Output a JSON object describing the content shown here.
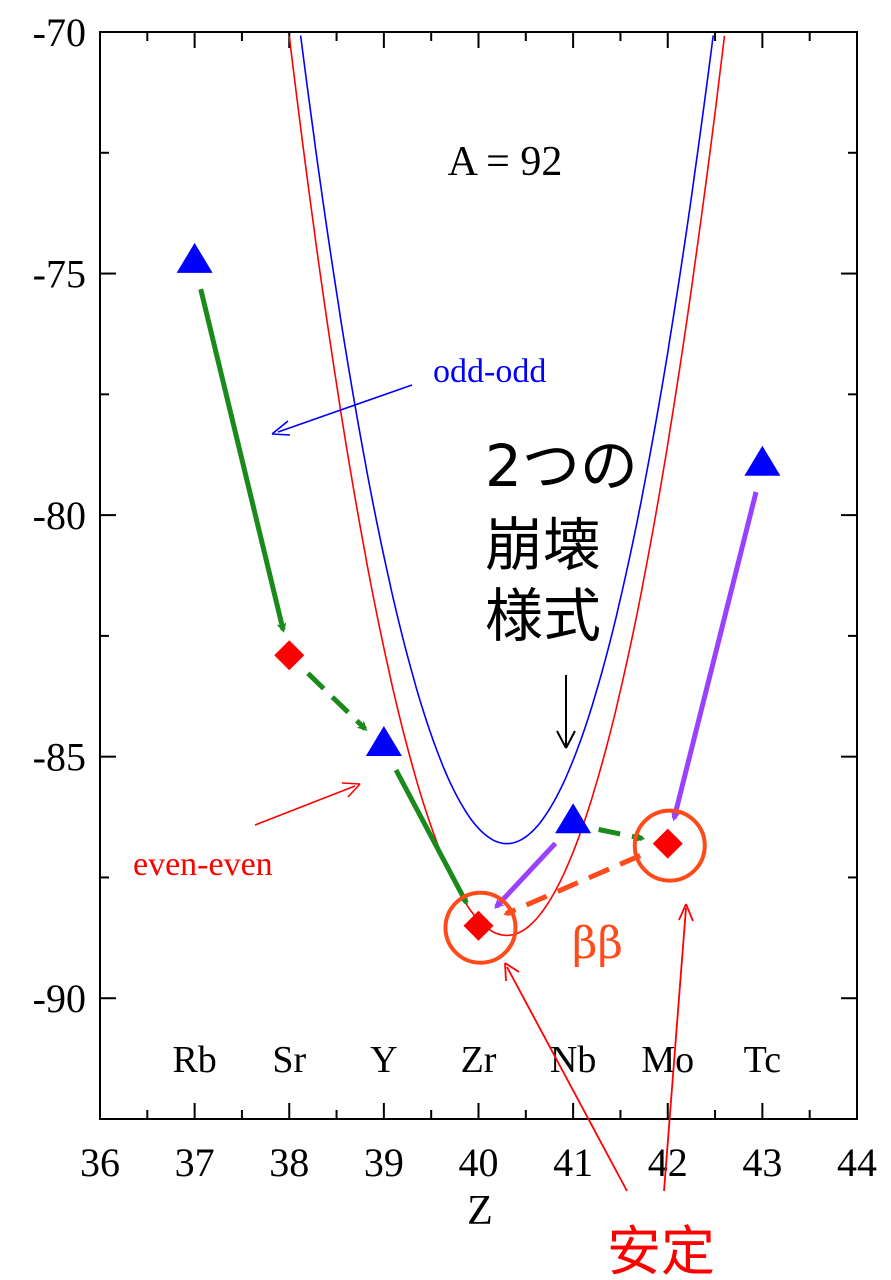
{
  "chart_data": {
    "type": "line",
    "title": "A = 92",
    "xlabel": "Z",
    "ylabel": "",
    "xlim": [
      36,
      44
    ],
    "ylim": [
      -92.5,
      -70
    ],
    "x_ticks": [
      "36",
      "37",
      "38",
      "39",
      "40",
      "41",
      "42",
      "43",
      "44"
    ],
    "y_ticks": [
      "-70",
      "-75",
      "-80",
      "-85",
      "-90"
    ],
    "elements": [
      {
        "z": 37,
        "symbol": "Rb"
      },
      {
        "z": 38,
        "symbol": "Sr"
      },
      {
        "z": 39,
        "symbol": "Y"
      },
      {
        "z": 40,
        "symbol": "Zr"
      },
      {
        "z": 41,
        "symbol": "Nb"
      },
      {
        "z": 42,
        "symbol": "Mo"
      },
      {
        "z": 43,
        "symbol": "Tc"
      }
    ],
    "series": [
      {
        "name": "odd-odd",
        "color": "#0000ff",
        "marker": "triangle",
        "points": [
          {
            "x": 37,
            "y": -74.8
          },
          {
            "x": 39,
            "y": -84.8
          },
          {
            "x": 41,
            "y": -86.4
          },
          {
            "x": 43,
            "y": -79.0
          }
        ],
        "curve": {
          "vertex_x": 40.3,
          "vertex_y": -86.8,
          "a": 3.52,
          "x_range": [
            37.2,
            43.0
          ]
        }
      },
      {
        "name": "even-even",
        "color": "#ff0000",
        "marker": "diamond",
        "points": [
          {
            "x": 38,
            "y": -82.9
          },
          {
            "x": 40,
            "y": -88.5
          },
          {
            "x": 42,
            "y": -86.8
          }
        ],
        "curve": {
          "vertex_x": 40.3,
          "vertex_y": -88.7,
          "a": 3.52,
          "x_range": [
            36.0,
            43.0
          ]
        }
      }
    ],
    "annotations": {
      "decay_label": "2つの\n崩壊\n様式",
      "double_beta_label": "ββ",
      "stable_label": "安定"
    },
    "grid": false
  },
  "colors": {
    "odd_odd": "#0000ff",
    "even_even": "#ff0000",
    "beta_minus": "#1a8a1a",
    "beta_plus": "#9a40ff",
    "double_beta": "#ff4a1a",
    "highlight": "#ff4a1a"
  }
}
